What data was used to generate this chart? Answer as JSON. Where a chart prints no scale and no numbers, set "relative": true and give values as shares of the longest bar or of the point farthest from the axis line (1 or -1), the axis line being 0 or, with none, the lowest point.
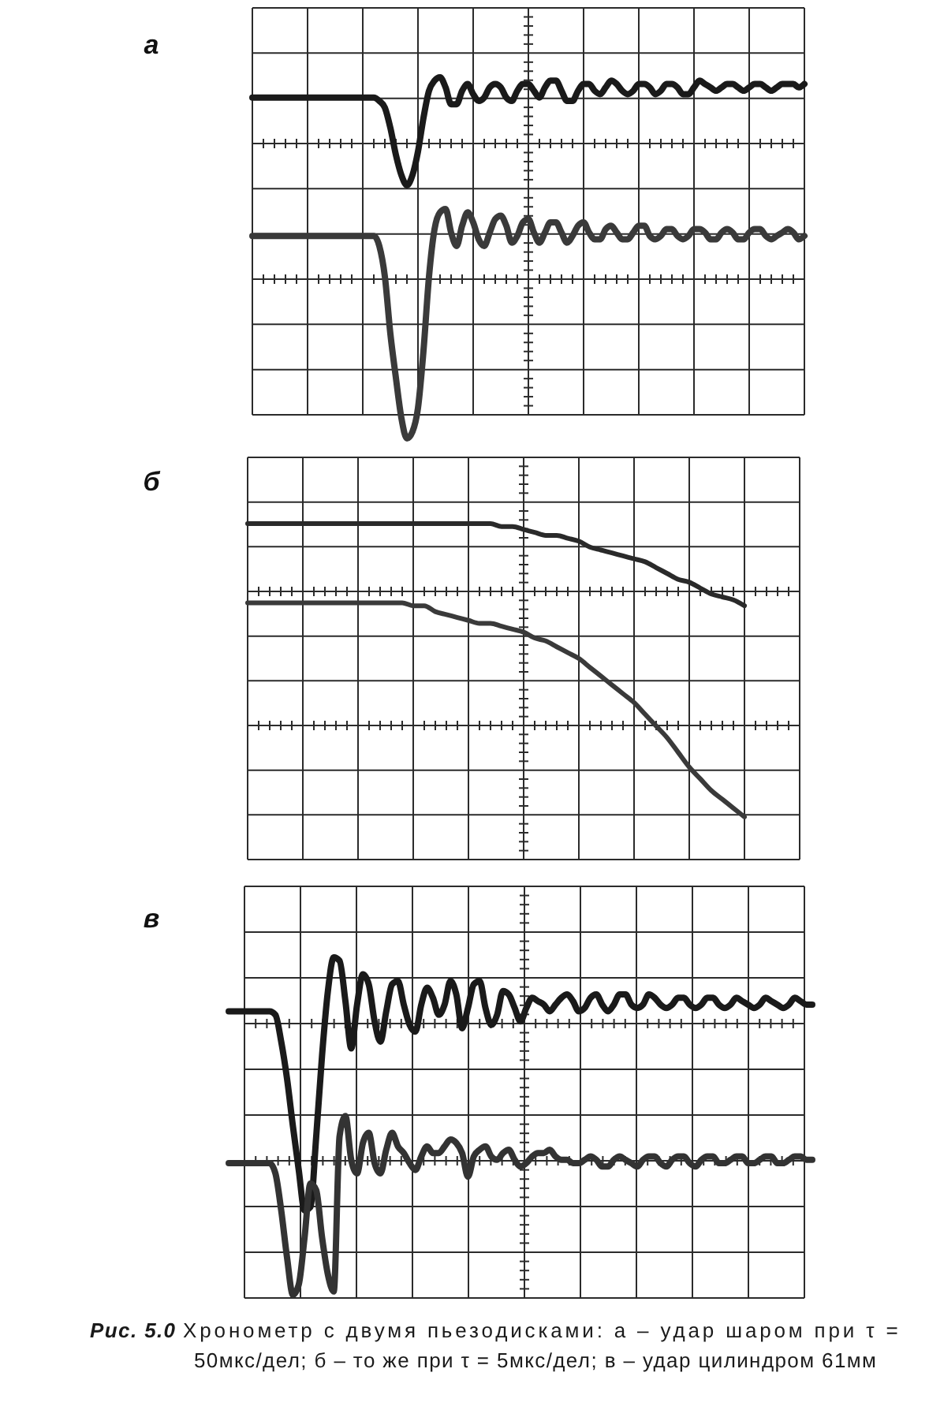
{
  "chart_data": [
    {
      "type": "line",
      "title": "а",
      "relative": true,
      "grid": true,
      "categories": [
        null,
        null,
        null,
        null,
        null,
        null,
        null,
        null,
        null,
        null,
        null,
        null,
        null,
        null,
        null,
        null,
        null,
        null,
        null,
        null,
        null,
        null,
        null,
        null,
        null,
        null,
        null,
        null,
        null,
        null,
        null,
        null,
        null,
        null,
        null,
        null,
        null,
        null,
        null,
        null,
        null,
        null,
        null,
        null,
        null,
        null,
        null,
        null,
        null,
        null,
        null,
        null,
        null,
        null,
        null,
        null,
        null,
        null,
        null,
        null,
        null,
        null,
        null,
        null,
        null,
        null,
        null,
        null,
        null,
        null,
        null,
        null,
        null,
        null,
        null,
        null,
        null,
        null,
        null,
        null,
        null,
        null,
        null,
        null,
        null,
        null,
        null,
        null,
        null,
        null,
        null,
        null,
        null,
        null,
        null,
        null,
        null,
        null,
        null,
        null,
        null
      ],
      "series": [
        {
          "color": "#1a1a1a",
          "values": [
            0.94,
            0.94,
            0.94,
            0.94,
            0.94,
            0.94,
            0.94,
            0.94,
            0.94,
            0.94,
            0.94,
            0.94,
            0.94,
            0.94,
            0.94,
            0.94,
            0.94,
            0.94,
            0.94,
            0.94,
            0.94,
            0.94,
            0.94,
            0.93,
            0.91,
            0.85,
            0.77,
            0.71,
            0.68,
            0.71,
            0.78,
            0.88,
            0.96,
            0.99,
            1.0,
            0.97,
            0.92,
            0.92,
            0.96,
            0.98,
            0.95,
            0.93,
            0.94,
            0.97,
            0.98,
            0.97,
            0.94,
            0.93,
            0.96,
            0.98,
            0.98,
            0.96,
            0.94,
            0.97,
            0.99,
            0.99,
            0.96,
            0.93,
            0.93,
            0.96,
            0.98,
            0.98,
            0.96,
            0.95,
            0.97,
            0.99,
            0.98,
            0.96,
            0.95,
            0.96,
            0.98,
            0.98,
            0.97,
            0.95,
            0.96,
            0.98,
            0.98,
            0.97,
            0.95,
            0.95,
            0.97,
            0.99,
            0.98,
            0.97,
            0.96,
            0.97,
            0.98,
            0.98,
            0.97,
            0.96,
            0.97,
            0.98,
            0.98,
            0.97,
            0.96,
            0.97,
            0.98,
            0.98,
            0.98,
            0.97,
            0.98
          ]
        },
        {
          "color": "#3a3a3a",
          "values": [
            0.53,
            0.53,
            0.53,
            0.53,
            0.53,
            0.53,
            0.53,
            0.53,
            0.53,
            0.53,
            0.53,
            0.53,
            0.53,
            0.53,
            0.53,
            0.53,
            0.53,
            0.53,
            0.53,
            0.53,
            0.53,
            0.53,
            0.53,
            0.5,
            0.41,
            0.24,
            0.11,
            -0.01,
            -0.07,
            -0.05,
            0.02,
            0.19,
            0.41,
            0.55,
            0.6,
            0.61,
            0.54,
            0.5,
            0.56,
            0.6,
            0.57,
            0.52,
            0.5,
            0.54,
            0.58,
            0.59,
            0.56,
            0.51,
            0.53,
            0.57,
            0.58,
            0.54,
            0.51,
            0.54,
            0.57,
            0.57,
            0.54,
            0.51,
            0.53,
            0.56,
            0.57,
            0.54,
            0.52,
            0.52,
            0.55,
            0.56,
            0.54,
            0.52,
            0.52,
            0.54,
            0.56,
            0.56,
            0.53,
            0.52,
            0.53,
            0.55,
            0.55,
            0.53,
            0.52,
            0.53,
            0.55,
            0.55,
            0.54,
            0.52,
            0.52,
            0.54,
            0.55,
            0.54,
            0.52,
            0.52,
            0.54,
            0.55,
            0.55,
            0.53,
            0.52,
            0.53,
            0.54,
            0.55,
            0.54,
            0.52,
            0.53
          ]
        }
      ]
    },
    {
      "type": "line",
      "title": "б",
      "relative": true,
      "grid": true,
      "categories": [
        null,
        null,
        null,
        null,
        null,
        null,
        null,
        null,
        null,
        null,
        null,
        null,
        null,
        null,
        null,
        null,
        null,
        null,
        null,
        null,
        null,
        null,
        null,
        null,
        null,
        null,
        null,
        null,
        null,
        null,
        null,
        null,
        null,
        null,
        null,
        null,
        null,
        null,
        null,
        null,
        null,
        null,
        null,
        null,
        null,
        null,
        null,
        null,
        null,
        null,
        null
      ],
      "series": [
        {
          "color": "#2a2a2a",
          "values": [
            1.0,
            1.0,
            1.0,
            1.0,
            1.0,
            1.0,
            1.0,
            1.0,
            1.0,
            1.0,
            1.0,
            1.0,
            1.0,
            1.0,
            1.0,
            1.0,
            1.0,
            1.0,
            1.0,
            1.0,
            1.0,
            1.0,
            1.0,
            0.99,
            0.99,
            0.98,
            0.97,
            0.96,
            0.96,
            0.95,
            0.94,
            0.92,
            0.91,
            0.9,
            0.89,
            0.88,
            0.87,
            0.85,
            0.83,
            0.81,
            0.8,
            0.78,
            0.76,
            0.75,
            0.74,
            0.72,
            null,
            null,
            null,
            null,
            null
          ]
        },
        {
          "color": "#3a3a3a",
          "values": [
            0.73,
            0.73,
            0.73,
            0.73,
            0.73,
            0.73,
            0.73,
            0.73,
            0.73,
            0.73,
            0.73,
            0.73,
            0.73,
            0.73,
            0.73,
            0.72,
            0.72,
            0.7,
            0.69,
            0.68,
            0.67,
            0.66,
            0.66,
            0.65,
            0.64,
            0.63,
            0.61,
            0.6,
            0.58,
            0.56,
            0.54,
            0.51,
            0.48,
            0.45,
            0.42,
            0.39,
            0.35,
            0.31,
            0.27,
            0.22,
            0.17,
            0.13,
            0.09,
            0.06,
            0.03,
            0.0,
            null,
            null,
            null,
            null,
            null
          ]
        }
      ]
    },
    {
      "type": "line",
      "title": "в",
      "relative": true,
      "grid": true,
      "categories": [
        null,
        null,
        null,
        null,
        null,
        null,
        null,
        null,
        null,
        null,
        null,
        null,
        null,
        null,
        null,
        null,
        null,
        null,
        null,
        null,
        null,
        null,
        null,
        null,
        null,
        null,
        null,
        null,
        null,
        null,
        null,
        null,
        null,
        null,
        null,
        null,
        null,
        null,
        null,
        null,
        null,
        null,
        null,
        null,
        null,
        null,
        null,
        null,
        null,
        null,
        null,
        null,
        null,
        null,
        null,
        null,
        null,
        null,
        null,
        null,
        null,
        null,
        null,
        null,
        null,
        null,
        null,
        null,
        null,
        null,
        null,
        null,
        null,
        null,
        null,
        null,
        null,
        null,
        null,
        null,
        null,
        null,
        null,
        null,
        null,
        null,
        null,
        null,
        null,
        null,
        null,
        null,
        null,
        null,
        null,
        null,
        null,
        null,
        null,
        null,
        null
      ],
      "series": [
        {
          "color": "#1a1a1a",
          "values": [
            0.84,
            0.84,
            0.84,
            0.84,
            0.84,
            0.84,
            0.84,
            0.84,
            0.83,
            0.75,
            0.64,
            0.5,
            0.37,
            0.25,
            0.26,
            0.47,
            0.71,
            0.9,
            1.0,
            0.99,
            0.87,
            0.73,
            0.86,
            0.95,
            0.92,
            0.81,
            0.75,
            0.84,
            0.92,
            0.93,
            0.86,
            0.8,
            0.78,
            0.86,
            0.91,
            0.88,
            0.83,
            0.86,
            0.93,
            0.89,
            0.79,
            0.85,
            0.92,
            0.93,
            0.85,
            0.8,
            0.83,
            0.9,
            0.89,
            0.85,
            0.81,
            0.85,
            0.88,
            0.87,
            0.86,
            0.84,
            0.86,
            0.88,
            0.89,
            0.87,
            0.84,
            0.85,
            0.88,
            0.89,
            0.86,
            0.84,
            0.86,
            0.89,
            0.89,
            0.86,
            0.85,
            0.86,
            0.89,
            0.88,
            0.86,
            0.85,
            0.86,
            0.88,
            0.88,
            0.86,
            0.85,
            0.86,
            0.88,
            0.88,
            0.86,
            0.85,
            0.86,
            0.88,
            0.87,
            0.86,
            0.85,
            0.86,
            0.88,
            0.87,
            0.86,
            0.85,
            0.86,
            0.88,
            0.87,
            0.86,
            0.86
          ]
        },
        {
          "color": "#333333",
          "values": [
            0.39,
            0.39,
            0.39,
            0.39,
            0.39,
            0.39,
            0.39,
            0.39,
            0.36,
            0.25,
            0.11,
            0.0,
            0.03,
            0.17,
            0.33,
            0.31,
            0.17,
            0.06,
            0.01,
            0.47,
            0.53,
            0.4,
            0.36,
            0.45,
            0.48,
            0.39,
            0.36,
            0.43,
            0.48,
            0.44,
            0.42,
            0.39,
            0.37,
            0.41,
            0.44,
            0.42,
            0.42,
            0.44,
            0.46,
            0.45,
            0.42,
            0.35,
            0.41,
            0.43,
            0.44,
            0.41,
            0.4,
            0.42,
            0.43,
            0.4,
            0.38,
            0.39,
            0.41,
            0.42,
            0.42,
            0.43,
            0.41,
            0.4,
            0.4,
            0.39,
            0.39,
            0.4,
            0.41,
            0.4,
            0.38,
            0.38,
            0.4,
            0.41,
            0.4,
            0.39,
            0.38,
            0.4,
            0.41,
            0.41,
            0.39,
            0.38,
            0.4,
            0.41,
            0.41,
            0.39,
            0.38,
            0.4,
            0.41,
            0.41,
            0.39,
            0.39,
            0.4,
            0.41,
            0.41,
            0.39,
            0.39,
            0.4,
            0.41,
            0.41,
            0.39,
            0.39,
            0.4,
            0.41,
            0.41,
            0.4,
            0.4
          ]
        }
      ],
      "annotations": [
        "Рис. 5.0",
        "Хронометр с двумя пьезодисками: а – удар шаром при τ = 50мкс/дел; б – то же при τ = 5мкс/дел; в – удар цилиндром 61мм"
      ]
    }
  ]
}
